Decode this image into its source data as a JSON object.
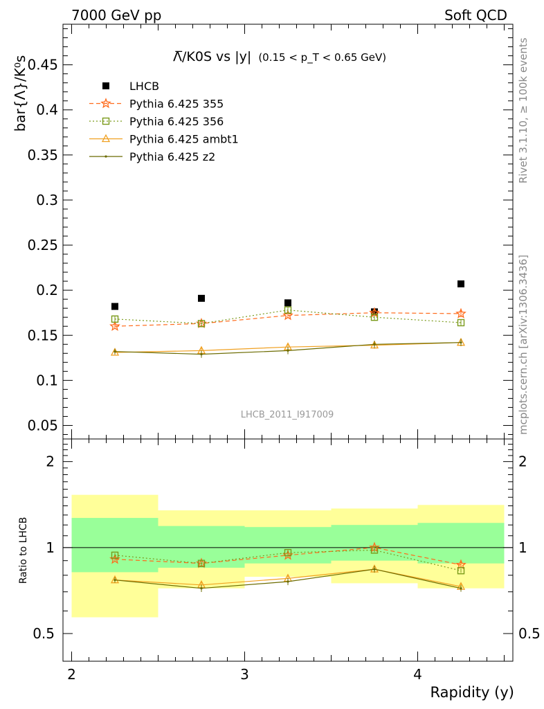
{
  "header": {
    "left": "7000 GeV pp",
    "right": "Soft QCD"
  },
  "side_labels": {
    "rivet": "Rivet 3.1.10, ≥ 100k events",
    "mcplots": "mcplots.cern.ch [arXiv:1306.3436]"
  },
  "watermark": "LHCB_2011_I917009",
  "colors": {
    "lhcb": "#000000",
    "p355": "#ff6a1a",
    "p356": "#7a9a1a",
    "ambt1": "#f0a020",
    "z2": "#6b6b00",
    "band_yellow": "#ffff99",
    "band_green": "#99ff99"
  },
  "chart_data": {
    "type": "scatter",
    "title_main": "Λ̅/K0S vs |y|",
    "title_sub": "(0.15 < p_T < 0.65 GeV)",
    "xlabel": "Rapidity (y)",
    "ylabel": "bar{Λ}/K⁰s",
    "ratio_ylabel": "Ratio to LHCB",
    "xlim": [
      1.95,
      4.55
    ],
    "ylim": [
      0.035,
      0.495
    ],
    "ratio_ylim": [
      0.4,
      2.4
    ],
    "x_ticks": [
      2,
      3,
      4
    ],
    "y_ticks": [
      0.05,
      0.1,
      0.15,
      0.2,
      0.25,
      0.3,
      0.35,
      0.4,
      0.45
    ],
    "y_tick_labels": [
      "0.05",
      "0.1",
      "0.15",
      "0.2",
      "0.25",
      "0.3",
      "0.35",
      "0.4",
      "0.45"
    ],
    "ratio_ticks": [
      0.5,
      1,
      2
    ],
    "ratio_tick_labels": [
      "0.5",
      "1",
      "2"
    ],
    "legend_position": "top-left",
    "bins": [
      [
        2.0,
        2.5
      ],
      [
        2.5,
        3.0
      ],
      [
        3.0,
        3.5
      ],
      [
        3.5,
        4.0
      ],
      [
        4.0,
        4.5
      ]
    ],
    "x": [
      2.25,
      2.75,
      3.25,
      3.75,
      4.25
    ],
    "data": {
      "name": "LHCB",
      "values": [
        0.182,
        0.191,
        0.186,
        0.176,
        0.207
      ],
      "band_green": [
        [
          0.82,
          1.27
        ],
        [
          0.85,
          1.19
        ],
        [
          0.88,
          1.18
        ],
        [
          0.9,
          1.2
        ],
        [
          0.88,
          1.22
        ]
      ],
      "band_yellow": [
        [
          0.57,
          1.53
        ],
        [
          0.72,
          1.35
        ],
        [
          0.79,
          1.35
        ],
        [
          0.75,
          1.37
        ],
        [
          0.72,
          1.41
        ]
      ]
    },
    "series": [
      {
        "name": "Pythia 6.425 355",
        "marker": "star",
        "dash": "dashed",
        "color_key": "p355",
        "values": [
          0.16,
          0.163,
          0.172,
          0.175,
          0.174
        ],
        "errors": [
          0.003,
          0.003,
          0.003,
          0.003,
          0.004
        ],
        "ratio": [
          0.91,
          0.88,
          0.94,
          1.0,
          0.87
        ]
      },
      {
        "name": "Pythia 6.425 356",
        "marker": "square",
        "dash": "dotted",
        "color_key": "p356",
        "values": [
          0.168,
          0.163,
          0.178,
          0.17,
          0.164
        ],
        "errors": [
          0.003,
          0.003,
          0.003,
          0.003,
          0.003
        ],
        "ratio": [
          0.94,
          0.88,
          0.96,
          0.98,
          0.83
        ]
      },
      {
        "name": "Pythia 6.425 ambt1",
        "marker": "triangle",
        "dash": "solid",
        "color_key": "ambt1",
        "values": [
          0.131,
          0.133,
          0.137,
          0.139,
          0.142
        ],
        "errors": [
          0.003,
          0.004,
          0.004,
          0.004,
          0.004
        ],
        "ratio": [
          0.77,
          0.74,
          0.78,
          0.84,
          0.73
        ]
      },
      {
        "name": "Pythia 6.425 z2",
        "marker": "dot",
        "dash": "solid",
        "color_key": "z2",
        "values": [
          0.132,
          0.129,
          0.133,
          0.14,
          0.142
        ],
        "errors": [
          0.003,
          0.004,
          0.004,
          0.004,
          0.004
        ],
        "ratio": [
          0.77,
          0.72,
          0.76,
          0.84,
          0.72
        ]
      }
    ]
  }
}
